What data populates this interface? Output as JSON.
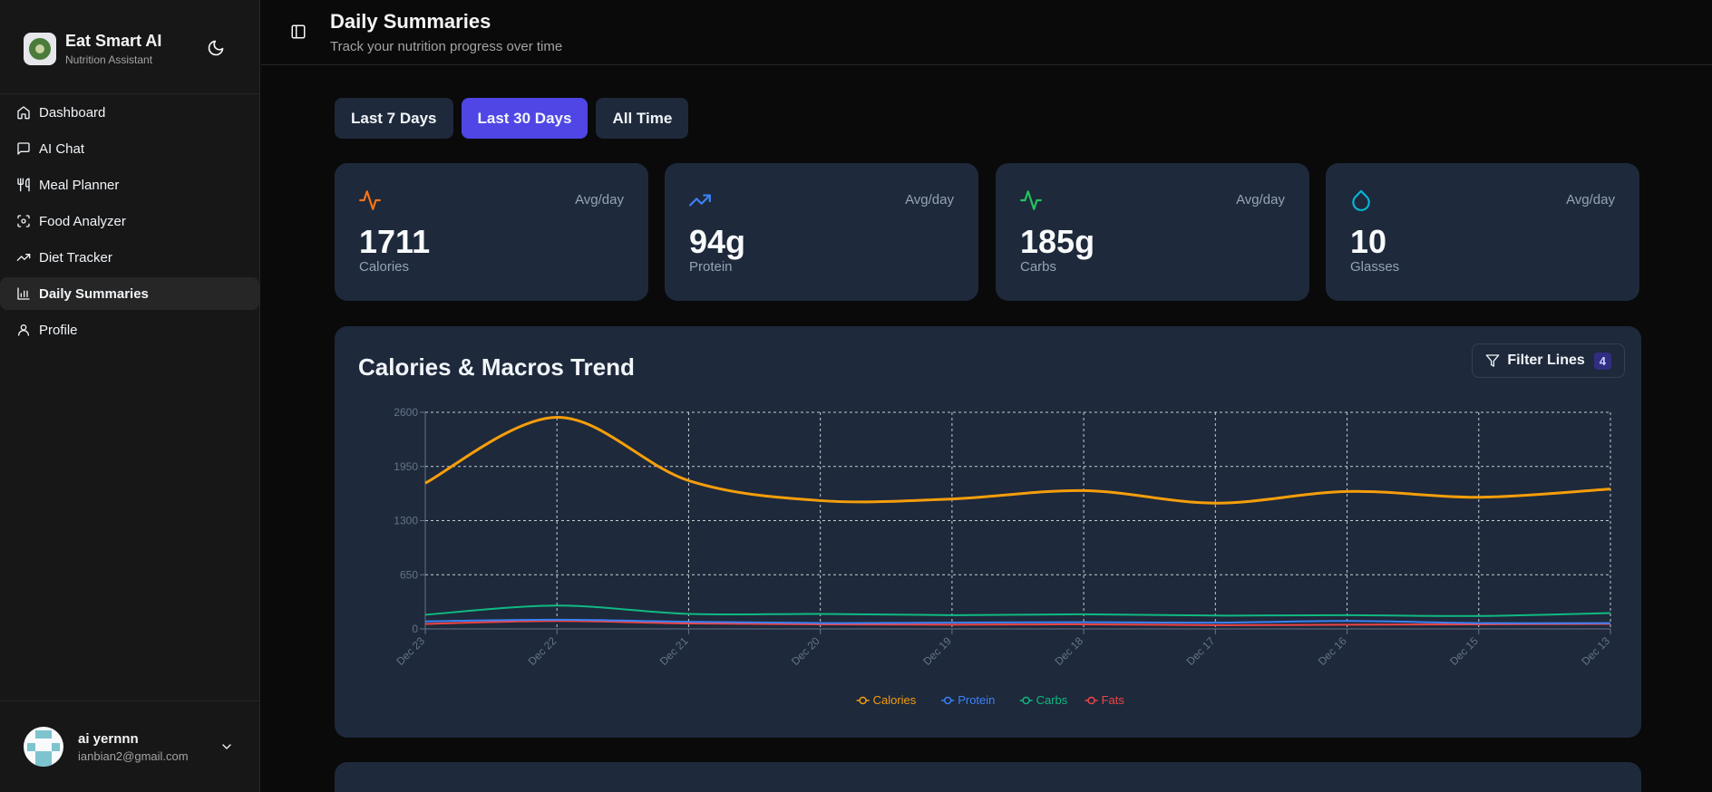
{
  "brand": {
    "title": "Eat Smart AI",
    "subtitle": "Nutrition Assistant",
    "logo_text": "EAT SMART AI"
  },
  "theme_icon": "moon-icon",
  "nav": {
    "items": [
      {
        "label": "Dashboard",
        "icon": "home-icon"
      },
      {
        "label": "AI Chat",
        "icon": "message-icon"
      },
      {
        "label": "Meal Planner",
        "icon": "utensils-icon"
      },
      {
        "label": "Food Analyzer",
        "icon": "scan-icon"
      },
      {
        "label": "Diet Tracker",
        "icon": "trending-up-icon"
      },
      {
        "label": "Daily Summaries",
        "icon": "bar-chart-icon",
        "active": true
      },
      {
        "label": "Profile",
        "icon": "user-icon"
      }
    ]
  },
  "user": {
    "name": "ai yernnn",
    "email": "ianbian2@gmail.com"
  },
  "header": {
    "title": "Daily Summaries",
    "subtitle": "Track your nutrition progress over time"
  },
  "ranges": [
    {
      "label": "Last 7 Days"
    },
    {
      "label": "Last 30 Days",
      "active": true
    },
    {
      "label": "All Time"
    }
  ],
  "stats": [
    {
      "icon": "activity-icon",
      "color": "#f97316",
      "avg": "Avg/day",
      "value": "1711",
      "label": "Calories"
    },
    {
      "icon": "trending-up-icon",
      "color": "#3b82f6",
      "avg": "Avg/day",
      "value": "94g",
      "label": "Protein"
    },
    {
      "icon": "activity-icon",
      "color": "#22c55e",
      "avg": "Avg/day",
      "value": "185g",
      "label": "Carbs"
    },
    {
      "icon": "droplet-icon",
      "color": "#06b6d4",
      "avg": "Avg/day",
      "value": "10",
      "label": "Glasses"
    }
  ],
  "chart": {
    "title": "Calories & Macros Trend",
    "filter_label": "Filter Lines",
    "filter_count": "4"
  },
  "chart_data": {
    "type": "line",
    "title": "Calories & Macros Trend",
    "xlabel": "",
    "ylabel": "",
    "x": [
      "Dec 23",
      "Dec 22",
      "Dec 21",
      "Dec 20",
      "Dec 19",
      "Dec 18",
      "Dec 17",
      "Dec 16",
      "Dec 15",
      "Dec 13"
    ],
    "yticks": [
      0,
      650,
      1300,
      1950,
      2600
    ],
    "ylim": [
      0,
      2600
    ],
    "grid": true,
    "legend": "bottom",
    "series": [
      {
        "name": "Calories",
        "color": "#f59e0b",
        "values": [
          1750,
          2540,
          1780,
          1540,
          1560,
          1660,
          1510,
          1650,
          1580,
          1680
        ]
      },
      {
        "name": "Protein",
        "color": "#3b82f6",
        "values": [
          90,
          110,
          85,
          70,
          75,
          80,
          75,
          95,
          70,
          70
        ]
      },
      {
        "name": "Carbs",
        "color": "#10b981",
        "values": [
          170,
          280,
          180,
          180,
          165,
          175,
          160,
          165,
          155,
          190
        ]
      },
      {
        "name": "Fats",
        "color": "#ef4444",
        "values": [
          60,
          95,
          65,
          55,
          50,
          55,
          45,
          50,
          55,
          60
        ]
      }
    ]
  }
}
